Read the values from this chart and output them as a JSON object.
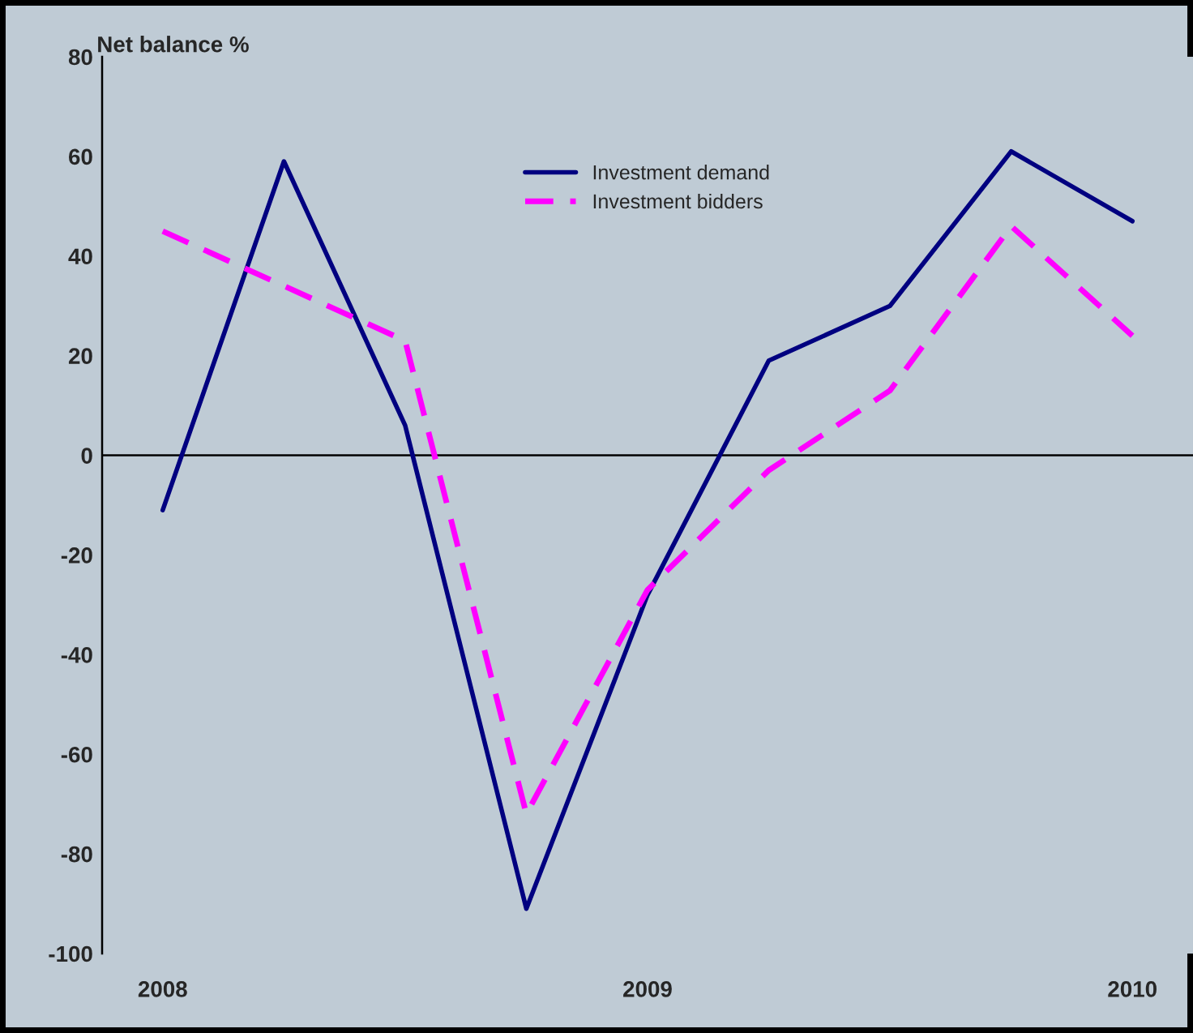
{
  "chart_data": {
    "type": "line",
    "ylabel": "Net balance %",
    "categories": [
      "2008",
      null,
      null,
      null,
      "2009",
      null,
      null,
      null,
      "2010"
    ],
    "series": [
      {
        "name": "Investment demand",
        "color": "#000080",
        "line_style": "solid",
        "values": [
          -11,
          59,
          6,
          -91,
          -28,
          19,
          30,
          61,
          47
        ]
      },
      {
        "name": "Investment bidders",
        "color": "#ff00ff",
        "line_style": "dashed",
        "values": [
          45,
          34,
          23,
          -72,
          -27,
          -3,
          13,
          46,
          24
        ]
      }
    ],
    "ylim": [
      -100,
      80
    ],
    "yticks": [
      -100,
      -80,
      -60,
      -40,
      -20,
      0,
      20,
      40,
      60,
      80
    ],
    "ref_lines": [
      {
        "axis": "y",
        "value": 0,
        "color": "#000000"
      }
    ],
    "legend": "top",
    "grid": false,
    "marker": "none"
  }
}
